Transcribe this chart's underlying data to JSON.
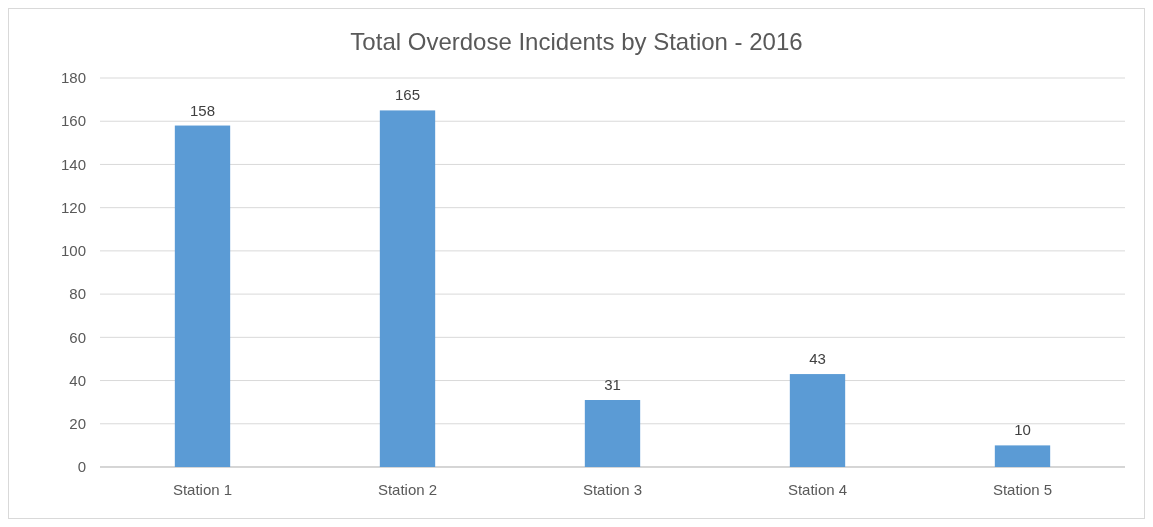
{
  "chart_data": {
    "type": "bar",
    "title": "Total Overdose Incidents by Station - 2016",
    "categories": [
      "Station 1",
      "Station 2",
      "Station 3",
      "Station 4",
      "Station 5"
    ],
    "values": [
      158,
      165,
      31,
      43,
      10
    ],
    "color": "#5b9bd5",
    "ylim": [
      0,
      180
    ],
    "yticks": [
      0,
      20,
      40,
      60,
      80,
      100,
      120,
      140,
      160,
      180
    ],
    "grid": "y",
    "data_labels": true
  }
}
